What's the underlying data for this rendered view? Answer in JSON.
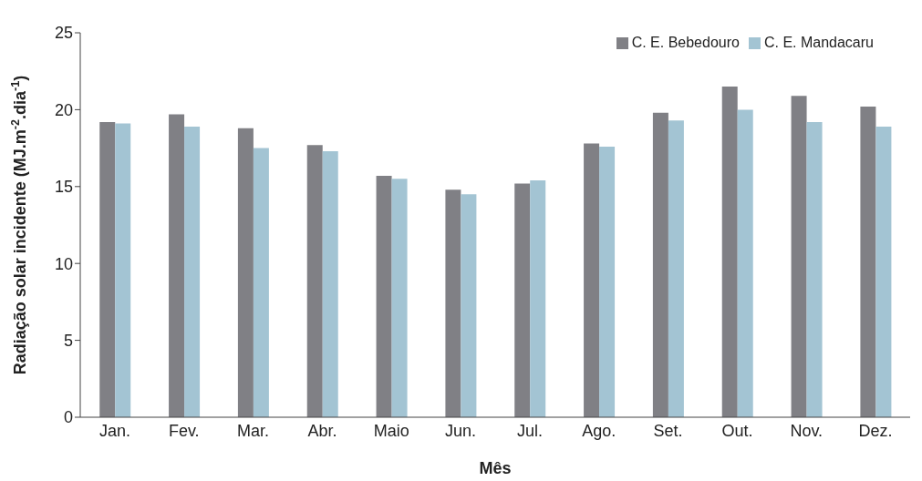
{
  "chart_data": {
    "type": "bar",
    "xlabel": "Mês",
    "ylabel": "Radiação solar incidente (MJ.m$^{-2}$.dia$^{-1}$)",
    "categories": [
      "Jan.",
      "Fev.",
      "Mar.",
      "Abr.",
      "Maio",
      "Jun.",
      "Jul.",
      "Ago.",
      "Set.",
      "Out.",
      "Nov.",
      "Dez."
    ],
    "series": [
      {
        "name": "C. E. Bebedouro",
        "color": "#808085",
        "values": [
          19.2,
          19.7,
          18.8,
          17.7,
          15.7,
          14.8,
          15.2,
          17.8,
          19.8,
          21.5,
          20.9,
          20.2
        ]
      },
      {
        "name": "C. E. Mandacaru",
        "color": "#a3c4d3",
        "values": [
          19.1,
          18.9,
          17.5,
          17.3,
          15.5,
          14.5,
          15.4,
          17.6,
          19.3,
          20.0,
          19.2,
          18.9
        ]
      }
    ],
    "ylim": [
      0,
      25
    ],
    "yticks": [
      0,
      5,
      10,
      15,
      20,
      25
    ],
    "grid": false,
    "legend": "top right"
  }
}
